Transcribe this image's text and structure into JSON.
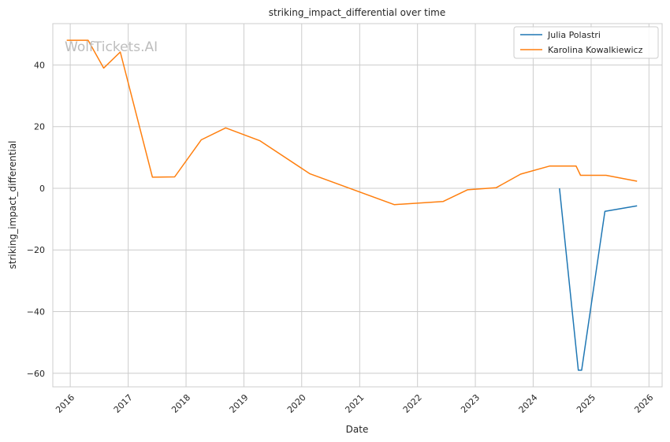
{
  "chart_data": {
    "type": "line",
    "title": "striking_impact_differential over time",
    "xlabel": "Date",
    "ylabel": "striking_impact_differential",
    "watermark": "WolfTickets.AI",
    "xlim": [
      "2015-09-13",
      "2026-03-25"
    ],
    "ylim": [
      -64.4,
      53.4
    ],
    "x_ticks": [
      "2016",
      "2017",
      "2018",
      "2019",
      "2020",
      "2021",
      "2022",
      "2023",
      "2024",
      "2025",
      "2026"
    ],
    "y_ticks": [
      40,
      20,
      0,
      -20,
      -40,
      -60
    ],
    "y_tick_labels": [
      "40",
      "20",
      "0",
      "−20",
      "−40",
      "−60"
    ],
    "grid": true,
    "legend_position": "top-right",
    "series": [
      {
        "name": "Julia Polastri",
        "color": "#1f77b4",
        "points": [
          {
            "x": "2024-06-15",
            "y": 0.0
          },
          {
            "x": "2024-10-12",
            "y": -59.0
          },
          {
            "x": "2024-11-02",
            "y": -59.0
          },
          {
            "x": "2025-03-29",
            "y": -7.5
          },
          {
            "x": "2025-10-18",
            "y": -5.7
          }
        ]
      },
      {
        "name": "Karolina Kowalkiewicz",
        "color": "#ff7f0e",
        "points": [
          {
            "x": "2015-12-10",
            "y": 48.0
          },
          {
            "x": "2016-04-23",
            "y": 48.0
          },
          {
            "x": "2016-07-30",
            "y": 39.0
          },
          {
            "x": "2016-11-12",
            "y": 44.2
          },
          {
            "x": "2017-06-03",
            "y": 3.6
          },
          {
            "x": "2017-10-21",
            "y": 3.7
          },
          {
            "x": "2018-04-07",
            "y": 15.7
          },
          {
            "x": "2018-09-08",
            "y": 19.6
          },
          {
            "x": "2019-04-13",
            "y": 15.4
          },
          {
            "x": "2020-02-22",
            "y": 4.7
          },
          {
            "x": "2021-08-07",
            "y": -5.3
          },
          {
            "x": "2022-06-11",
            "y": -4.3
          },
          {
            "x": "2022-11-12",
            "y": -0.5
          },
          {
            "x": "2023-05-13",
            "y": 0.2
          },
          {
            "x": "2023-10-14",
            "y": 4.6
          },
          {
            "x": "2024-04-13",
            "y": 7.2
          },
          {
            "x": "2024-09-28",
            "y": 7.2
          },
          {
            "x": "2024-10-26",
            "y": 4.2
          },
          {
            "x": "2025-04-05",
            "y": 4.2
          },
          {
            "x": "2025-10-18",
            "y": 2.3
          }
        ]
      }
    ]
  }
}
